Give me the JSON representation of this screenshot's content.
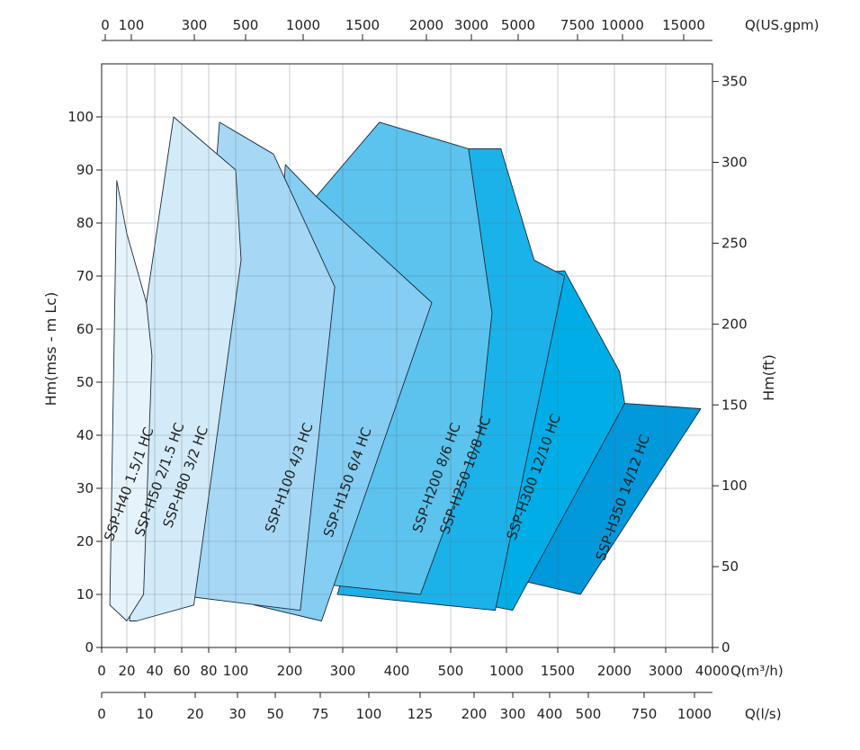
{
  "chart_data": {
    "type": "area",
    "y_left": {
      "label": "Hm(mss - m Lc)",
      "ylim": [
        0,
        110
      ],
      "ticks": [
        0,
        10,
        20,
        30,
        40,
        50,
        60,
        70,
        80,
        90,
        100
      ]
    },
    "y_right": {
      "label": "Hm(ft)",
      "ticks": [
        0,
        50,
        100,
        150,
        200,
        250,
        300,
        350
      ]
    },
    "x_bottom": {
      "label": "Q(m³/h)",
      "ticks": [
        "0",
        "20",
        "40",
        "60",
        "80",
        "100",
        "200",
        "300",
        "400",
        "500",
        "1000",
        "1500",
        "2000",
        "3000",
        "4000"
      ]
    },
    "x_ls": {
      "label": "Q(l/s)",
      "ticks": [
        "0",
        "10",
        "20",
        "30",
        "50",
        "75",
        "100",
        "125",
        "200",
        "300",
        "400",
        "500",
        "750",
        "1000"
      ]
    },
    "x_top": {
      "label": "Q(US.gpm)",
      "ticks": [
        "0",
        "100",
        "300",
        "500",
        "1000",
        "1500",
        "2000",
        "3000",
        "5000",
        "7500",
        "10000",
        "15000"
      ]
    },
    "colors": [
      "#e6f3fb",
      "#d3ebf8",
      "#bde2f7",
      "#a6d8f5",
      "#85cdf2",
      "#5bc3ee",
      "#1bb2ea",
      "#00ade7",
      "#0298dc"
    ],
    "series": [
      {
        "name": "SSP-H40 1.5/1 HC",
        "outline": [
          [
            6.5,
            8
          ],
          [
            12,
            88
          ],
          [
            20,
            78
          ],
          [
            34,
            65
          ],
          [
            38,
            55
          ],
          [
            32,
            10
          ],
          [
            20,
            5
          ]
        ]
      },
      {
        "name": "SSP-H50 2/1.5 HC",
        "outline": [
          [
            22,
            5
          ],
          [
            34,
            65
          ],
          [
            54,
            100
          ],
          [
            100,
            90
          ],
          [
            110,
            73
          ],
          [
            69,
            8
          ],
          [
            27,
            5
          ]
        ]
      },
      {
        "name": "SSP-H80 3/2 HC",
        "outline": [
          [
            29,
            10
          ],
          [
            34,
            65
          ],
          [
            56,
            60
          ],
          [
            82,
            52
          ],
          [
            50,
            8
          ]
        ]
      },
      {
        "name": "SSP-H100 4/3 HC",
        "outline": [
          [
            53,
            10
          ],
          [
            70,
            40
          ],
          [
            88,
            99
          ],
          [
            170,
            93
          ],
          [
            285,
            68
          ],
          [
            220,
            7
          ],
          [
            140,
            8
          ]
        ]
      },
      {
        "name": "SSP-H150 6/4 HC",
        "outline": [
          [
            135,
            8
          ],
          [
            192,
            91
          ],
          [
            250,
            85
          ],
          [
            465,
            65
          ],
          [
            260,
            5
          ]
        ]
      },
      {
        "name": "SSP-H200 8/6 HC",
        "outline": [
          [
            255,
            12
          ],
          [
            250,
            85
          ],
          [
            368,
            99
          ],
          [
            660,
            94
          ],
          [
            870,
            63
          ],
          [
            755,
            40
          ],
          [
            444,
            10
          ]
        ]
      },
      {
        "name": "SSP-H250 10/8 HC",
        "outline": [
          [
            290,
            10
          ],
          [
            600,
            94
          ],
          [
            950,
            94
          ],
          [
            1270,
            73
          ],
          [
            1560,
            70
          ],
          [
            900,
            7
          ]
        ]
      },
      {
        "name": "SSP-H300 12/10 HC",
        "outline": [
          [
            820,
            8
          ],
          [
            900,
            70
          ],
          [
            1560,
            71
          ],
          [
            2100,
            52
          ],
          [
            2200,
            46
          ],
          [
            1060,
            7
          ]
        ]
      },
      {
        "name": "SSP-H350 14/12 HC",
        "outline": [
          [
            1060,
            13
          ],
          [
            1700,
            40
          ],
          [
            2200,
            46
          ],
          [
            3750,
            45
          ],
          [
            1700,
            10
          ]
        ]
      }
    ]
  }
}
